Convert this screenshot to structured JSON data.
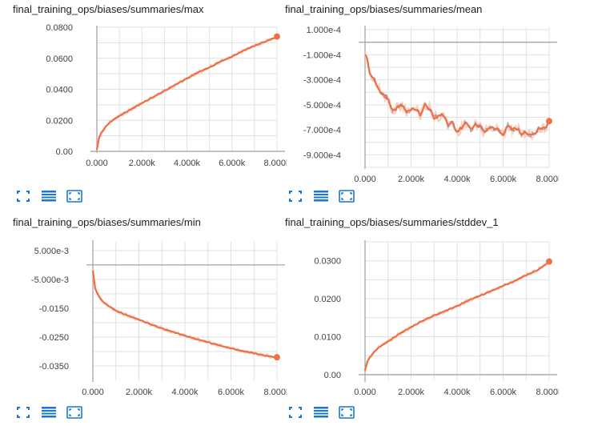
{
  "colors": {
    "line": "#EF7045",
    "line_dark": "#2F5E8F",
    "band": "#F5C4B3",
    "grid": "#E0E0E0",
    "axis": "#9E9E9E",
    "icon": "#1976D2"
  },
  "toolbar_icons": [
    "fit-domain-icon",
    "data-selection-icon",
    "expand-chart-icon"
  ],
  "chart_data": [
    {
      "id": "max",
      "type": "line",
      "title": "final_training_ops/biases/summaries/max",
      "x_ticks": [
        "0.000",
        "2.000k",
        "4.000k",
        "6.000k",
        "8.000k"
      ],
      "y_ticks": [
        "0.00",
        "0.0200",
        "0.0400",
        "0.0600",
        "0.0800"
      ],
      "xlim": [
        0,
        8000
      ],
      "ylim": [
        0,
        0.08
      ],
      "series": [
        {
          "x": [
            0,
            100,
            200,
            400,
            600,
            800,
            1000,
            1500,
            2000,
            2500,
            3000,
            3500,
            4000,
            4500,
            5000,
            5500,
            6000,
            6500,
            7000,
            7500,
            8000
          ],
          "y": [
            0.001,
            0.009,
            0.012,
            0.016,
            0.019,
            0.021,
            0.023,
            0.027,
            0.031,
            0.035,
            0.039,
            0.043,
            0.047,
            0.051,
            0.054,
            0.058,
            0.061,
            0.065,
            0.068,
            0.071,
            0.074
          ]
        }
      ]
    },
    {
      "id": "mean",
      "type": "line",
      "title": "final_training_ops/biases/summaries/mean",
      "x_ticks": [
        "0.000",
        "2.000k",
        "4.000k",
        "6.000k",
        "8.000k"
      ],
      "y_ticks": [
        "1.000e-4",
        "-1.000e-4",
        "-3.000e-4",
        "-5.000e-4",
        "-7.000e-4",
        "-9.000e-4"
      ],
      "xlim": [
        0,
        8000
      ],
      "ylim": [
        -0.001,
        0.00012
      ],
      "series": [
        {
          "x": [
            0,
            100,
            200,
            400,
            600,
            800,
            1000,
            1200,
            1400,
            1600,
            1800,
            2000,
            2200,
            2400,
            2600,
            2800,
            3000,
            3200,
            3400,
            3600,
            3800,
            4000,
            4200,
            4400,
            4600,
            4800,
            5000,
            5200,
            5400,
            5600,
            5800,
            6000,
            6200,
            6400,
            6600,
            6800,
            7000,
            7200,
            7400,
            7600,
            7800,
            8000
          ],
          "y": [
            -0.0001,
            -0.00013,
            -0.00025,
            -0.0003,
            -0.00038,
            -0.00042,
            -0.00045,
            -0.00055,
            -0.00052,
            -0.0005,
            -0.00056,
            -0.00054,
            -0.00053,
            -0.00058,
            -0.0005,
            -0.00053,
            -0.0006,
            -0.00059,
            -0.00058,
            -0.00066,
            -0.00064,
            -0.00072,
            -0.00068,
            -0.00064,
            -0.0007,
            -0.00066,
            -0.00067,
            -0.00072,
            -0.00068,
            -0.00069,
            -0.0007,
            -0.00074,
            -0.00066,
            -0.0007,
            -0.00069,
            -0.00073,
            -0.00072,
            -0.00074,
            -0.00072,
            -0.00068,
            -0.00069,
            -0.00063
          ]
        }
      ]
    },
    {
      "id": "min",
      "type": "line",
      "title": "final_training_ops/biases/summaries/min",
      "x_ticks": [
        "0.000",
        "2.000k",
        "4.000k",
        "6.000k",
        "8.000k"
      ],
      "y_ticks": [
        "5.000e-3",
        "-5.000e-3",
        "-0.0150",
        "-0.0250",
        "-0.0350"
      ],
      "xlim": [
        0,
        8000
      ],
      "ylim": [
        -0.04,
        0.008
      ],
      "series": [
        {
          "x": [
            0,
            100,
            200,
            400,
            600,
            800,
            1000,
            1500,
            2000,
            2500,
            3000,
            3500,
            4000,
            4500,
            5000,
            5500,
            6000,
            6500,
            7000,
            7500,
            8000
          ],
          "y": [
            -0.002,
            -0.008,
            -0.01,
            -0.0125,
            -0.0138,
            -0.0148,
            -0.0158,
            -0.0175,
            -0.019,
            -0.0205,
            -0.022,
            -0.0233,
            -0.0245,
            -0.0257,
            -0.0268,
            -0.0279,
            -0.0289,
            -0.0298,
            -0.0306,
            -0.0314,
            -0.032
          ]
        }
      ]
    },
    {
      "id": "stddev",
      "type": "line",
      "title": "final_training_ops/biases/summaries/stddev_1",
      "x_ticks": [
        "0.000",
        "2.000k",
        "4.000k",
        "6.000k",
        "8.000k"
      ],
      "y_ticks": [
        "0.00",
        "0.0100",
        "0.0200",
        "0.0300"
      ],
      "xlim": [
        0,
        8000
      ],
      "ylim": [
        -0.0015,
        0.035
      ],
      "series": [
        {
          "x": [
            0,
            100,
            200,
            400,
            600,
            800,
            1000,
            1500,
            2000,
            2500,
            3000,
            3500,
            4000,
            4500,
            5000,
            5500,
            6000,
            6500,
            7000,
            7500,
            8000
          ],
          "y": [
            0.001,
            0.0035,
            0.0045,
            0.006,
            0.0072,
            0.008,
            0.0088,
            0.0108,
            0.0125,
            0.0142,
            0.0156,
            0.0168,
            0.0181,
            0.0196,
            0.0208,
            0.0221,
            0.0234,
            0.0247,
            0.0262,
            0.0276,
            0.0298
          ]
        }
      ]
    }
  ]
}
